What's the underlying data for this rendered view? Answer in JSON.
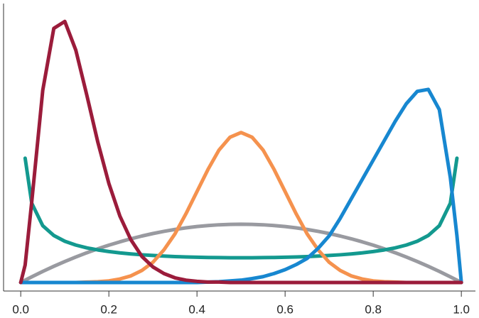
{
  "chart_data": {
    "type": "line",
    "x": [
      0,
      0.01,
      0.025,
      0.05,
      0.075,
      0.1,
      0.125,
      0.15,
      0.175,
      0.2,
      0.225,
      0.25,
      0.275,
      0.3,
      0.325,
      0.35,
      0.375,
      0.4,
      0.425,
      0.45,
      0.475,
      0.5,
      0.525,
      0.55,
      0.575,
      0.6,
      0.625,
      0.65,
      0.675,
      0.7,
      0.725,
      0.75,
      0.775,
      0.8,
      0.825,
      0.85,
      0.875,
      0.9,
      0.925,
      0.95,
      0.975,
      0.99,
      1
    ],
    "series": [
      {
        "color": "#999aa0",
        "values": [
          0,
          0.059,
          0.146,
          0.285,
          0.416,
          0.54,
          0.656,
          0.765,
          0.866,
          0.96,
          1.046,
          1.125,
          1.196,
          1.26,
          1.316,
          1.365,
          1.406,
          1.44,
          1.466,
          1.485,
          1.496,
          1.5,
          1.496,
          1.485,
          1.466,
          1.44,
          1.406,
          1.365,
          1.316,
          1.26,
          1.196,
          1.125,
          1.046,
          0.96,
          0.866,
          0.765,
          0.656,
          0.54,
          0.416,
          0.285,
          0.146,
          0.059,
          0
        ]
      },
      {
        "color": "#13998f",
        "values": [
          null,
          3.2,
          2.04,
          1.46,
          1.21,
          1.061,
          0.963,
          0.891,
          0.838,
          0.796,
          0.762,
          0.735,
          0.713,
          0.695,
          0.68,
          0.667,
          0.658,
          0.65,
          0.644,
          0.64,
          0.637,
          0.637,
          0.637,
          0.64,
          0.644,
          0.65,
          0.658,
          0.667,
          0.68,
          0.695,
          0.713,
          0.735,
          0.762,
          0.796,
          0.838,
          0.891,
          0.963,
          1.061,
          1.21,
          1.46,
          2.04,
          3.2,
          null
        ]
      },
      {
        "color": "#f5924e",
        "values": [
          0,
          0,
          0,
          0,
          0,
          0,
          0,
          0.01,
          0.02,
          0.04,
          0.09,
          0.17,
          0.31,
          0.52,
          0.84,
          1.25,
          1.77,
          2.34,
          2.91,
          3.41,
          3.74,
          3.86,
          3.74,
          3.41,
          2.91,
          2.34,
          1.77,
          1.25,
          0.84,
          0.52,
          0.31,
          0.17,
          0.09,
          0.04,
          0.02,
          0.01,
          0,
          0,
          0,
          0,
          0,
          0,
          0
        ]
      },
      {
        "color": "#1787d0",
        "values": [
          0,
          0,
          0,
          0,
          0,
          0,
          0,
          0,
          0,
          0,
          0,
          0,
          0,
          0,
          0,
          0,
          0,
          0,
          0.01,
          0.02,
          0.04,
          0.06,
          0.1,
          0.15,
          0.23,
          0.33,
          0.46,
          0.62,
          0.88,
          1.2,
          1.65,
          2.15,
          2.65,
          3.15,
          3.65,
          4.15,
          4.6,
          4.92,
          4.97,
          4.45,
          2.7,
          1.2,
          0
        ]
      },
      {
        "color": "#9b1c3b",
        "values": [
          0,
          0.45,
          2.08,
          4.95,
          6.54,
          6.72,
          5.98,
          4.82,
          3.61,
          2.55,
          1.71,
          1.1,
          0.67,
          0.4,
          0.23,
          0.12,
          0.06,
          0.03,
          0.01,
          0.01,
          0,
          0,
          0,
          0,
          0,
          0,
          0,
          0,
          0,
          0,
          0,
          0,
          0,
          0,
          0,
          0,
          0,
          0,
          0,
          0,
          0,
          0,
          0
        ]
      }
    ],
    "xlim": [
      -0.039,
      1.032
    ],
    "ylim": [
      -0.22,
      7.18
    ],
    "xticks": [
      {
        "value": 0,
        "label": "0.0"
      },
      0.2,
      0.4,
      0.6,
      0.8,
      {
        "value": 1,
        "label": "1.0"
      }
    ]
  }
}
